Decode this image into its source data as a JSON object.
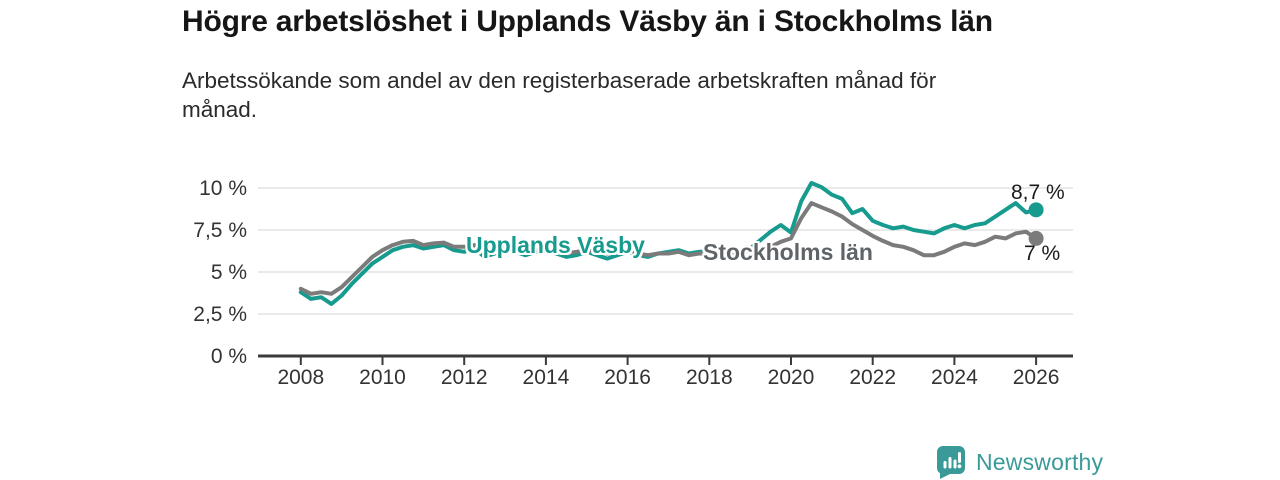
{
  "brand": {
    "name": "Newsworthy",
    "icon": "bar-chart-bubble-icon",
    "color": "#3a9a98"
  },
  "chart_data": {
    "type": "line",
    "title": "Högre arbetslöshet i Upplands Väsby än i Stockholms län",
    "subtitle": "Arbetssökande som andel av den registerbaserade arbetskraften månad för månad.",
    "xlabel": "",
    "ylabel": "",
    "unit": "%",
    "grid": "horizontal",
    "legend": "inline-labels-on-lines",
    "x_range": [
      2008,
      2026
    ],
    "ylim": [
      0,
      10.5
    ],
    "x_ticks": [
      2008,
      2010,
      2012,
      2014,
      2016,
      2018,
      2020,
      2022,
      2024,
      2026
    ],
    "y_ticks": [
      {
        "label": "0 %",
        "value": 0
      },
      {
        "label": "2,5 %",
        "value": 2.5
      },
      {
        "label": "5 %",
        "value": 5
      },
      {
        "label": "7,5 %",
        "value": 7.5
      },
      {
        "label": "10 %",
        "value": 10
      }
    ],
    "x": [
      2008.0,
      2008.25,
      2008.5,
      2008.75,
      2009.0,
      2009.25,
      2009.5,
      2009.75,
      2010.0,
      2010.25,
      2010.5,
      2010.75,
      2011.0,
      2011.25,
      2011.5,
      2011.75,
      2012.0,
      2012.25,
      2012.5,
      2012.75,
      2013.0,
      2013.25,
      2013.5,
      2013.75,
      2014.0,
      2014.25,
      2014.5,
      2014.75,
      2015.0,
      2015.25,
      2015.5,
      2015.75,
      2016.0,
      2016.25,
      2016.5,
      2016.75,
      2017.0,
      2017.25,
      2017.5,
      2017.75,
      2018.0,
      2018.25,
      2018.5,
      2018.75,
      2019.0,
      2019.25,
      2019.5,
      2019.75,
      2020.0,
      2020.25,
      2020.5,
      2020.75,
      2021.0,
      2021.25,
      2021.5,
      2021.75,
      2022.0,
      2022.25,
      2022.5,
      2022.75,
      2023.0,
      2023.25,
      2023.5,
      2023.75,
      2024.0,
      2024.25,
      2024.5,
      2024.75,
      2025.0,
      2025.25,
      2025.5,
      2025.75,
      2026.0
    ],
    "series": [
      {
        "id": "upplands_vasby",
        "name": "Upplands Väsby",
        "color": "#169b8e",
        "end_label": "8,7 %",
        "end_value": 8.7,
        "values": [
          3.8,
          3.4,
          3.5,
          3.1,
          3.6,
          4.3,
          4.9,
          5.5,
          5.9,
          6.3,
          6.5,
          6.6,
          6.4,
          6.5,
          6.6,
          6.3,
          6.2,
          6.4,
          5.9,
          6.1,
          6.3,
          6.2,
          6.0,
          6.2,
          6.3,
          6.1,
          5.9,
          6.0,
          6.2,
          6.0,
          5.8,
          6.0,
          6.2,
          6.0,
          5.9,
          6.1,
          6.2,
          6.3,
          6.1,
          6.2,
          6.2,
          6.3,
          6.2,
          6.3,
          6.4,
          6.9,
          7.4,
          7.8,
          7.35,
          9.2,
          10.3,
          10.05,
          9.6,
          9.35,
          8.5,
          8.75,
          8.05,
          7.8,
          7.6,
          7.7,
          7.5,
          7.4,
          7.3,
          7.6,
          7.8,
          7.6,
          7.8,
          7.9,
          8.3,
          8.7,
          9.1,
          8.55,
          8.7
        ]
      },
      {
        "id": "stockholms_lan",
        "name": "Stockholms län",
        "color": "#7b7b7b",
        "end_label": "7 %",
        "end_value": 7,
        "values": [
          4.0,
          3.7,
          3.8,
          3.7,
          4.1,
          4.7,
          5.3,
          5.9,
          6.3,
          6.6,
          6.8,
          6.85,
          6.6,
          6.7,
          6.75,
          6.5,
          6.5,
          6.6,
          6.3,
          6.3,
          6.4,
          6.3,
          6.2,
          6.3,
          6.3,
          6.2,
          6.1,
          6.2,
          6.3,
          6.2,
          6.1,
          6.2,
          6.2,
          6.1,
          6.0,
          6.1,
          6.1,
          6.2,
          6.0,
          6.1,
          6.1,
          6.2,
          6.1,
          6.2,
          6.2,
          6.3,
          6.5,
          6.8,
          7.0,
          8.2,
          9.1,
          8.85,
          8.6,
          8.3,
          7.85,
          7.5,
          7.15,
          6.85,
          6.6,
          6.5,
          6.3,
          6.0,
          6.0,
          6.2,
          6.5,
          6.7,
          6.6,
          6.8,
          7.1,
          7.0,
          7.3,
          7.4,
          7.0
        ]
      }
    ]
  }
}
